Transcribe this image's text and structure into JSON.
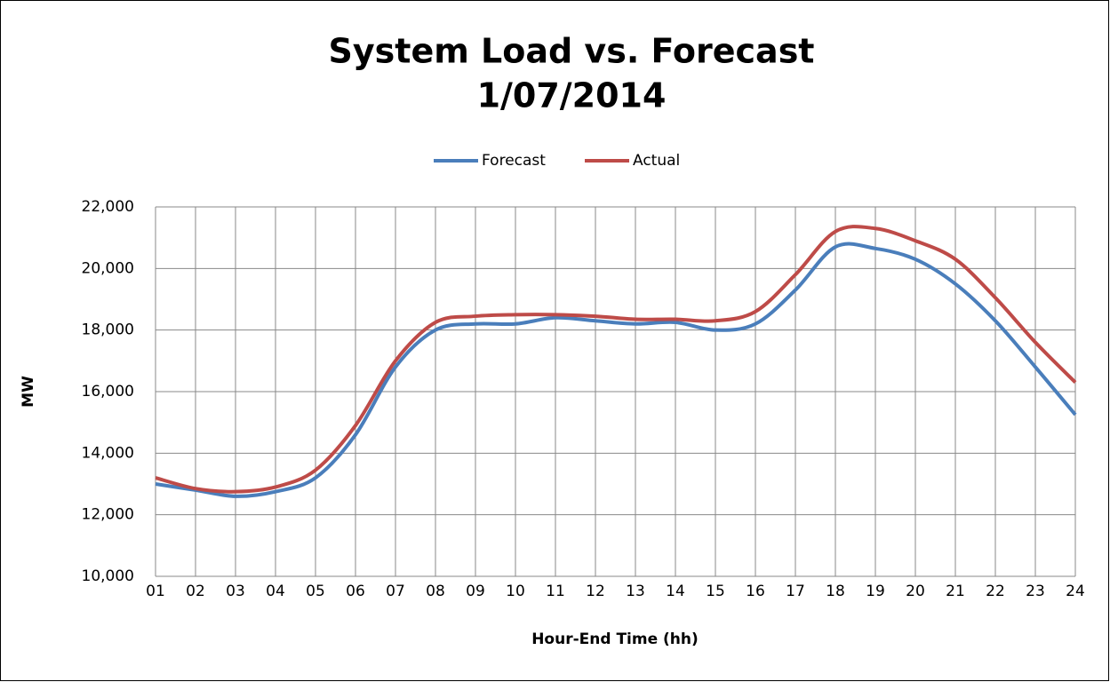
{
  "chart_data": {
    "type": "line",
    "title": "System Load vs. Forecast",
    "subtitle": "1/07/2014",
    "x_label": "Hour-End Time (hh)",
    "y_label": "MW",
    "categories": [
      "01",
      "02",
      "03",
      "04",
      "05",
      "06",
      "07",
      "08",
      "09",
      "10",
      "11",
      "12",
      "13",
      "14",
      "15",
      "16",
      "17",
      "18",
      "19",
      "20",
      "21",
      "22",
      "23",
      "24"
    ],
    "series": [
      {
        "name": "Forecast",
        "color": "#4a7ebb",
        "values": [
          13000,
          12800,
          12600,
          12750,
          13200,
          14600,
          16800,
          18000,
          18200,
          18200,
          18400,
          18300,
          18200,
          18250,
          18000,
          18200,
          19300,
          20700,
          20650,
          20300,
          19500,
          18300,
          16800,
          15250
        ]
      },
      {
        "name": "Actual",
        "color": "#be4b48",
        "values": [
          13200,
          12850,
          12750,
          12900,
          13450,
          14900,
          17000,
          18250,
          18450,
          18500,
          18500,
          18450,
          18350,
          18350,
          18300,
          18600,
          19800,
          21200,
          21300,
          20900,
          20300,
          19050,
          17600,
          16300
        ]
      }
    ],
    "ylim": [
      10000,
      22000
    ],
    "yticks": [
      {
        "value": 10000,
        "label": "10,000"
      },
      {
        "value": 12000,
        "label": "12,000"
      },
      {
        "value": 14000,
        "label": "14,000"
      },
      {
        "value": 16000,
        "label": "16,000"
      },
      {
        "value": 18000,
        "label": "18,000"
      },
      {
        "value": 20000,
        "label": "20,000"
      },
      {
        "value": 22000,
        "label": "22,000"
      }
    ],
    "grid": true,
    "legend": "top",
    "smooth": true
  }
}
